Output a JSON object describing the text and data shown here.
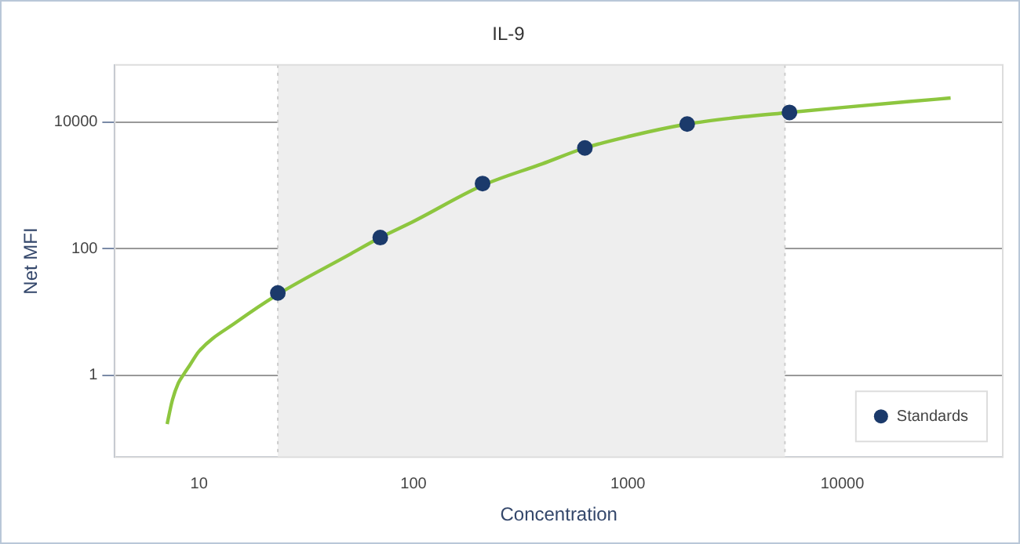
{
  "chart_data": {
    "type": "line",
    "title": "IL-9",
    "xlabel": "Concentration",
    "ylabel": "Net MFI",
    "log": "xy",
    "xlim": [
      4.05,
      56000
    ],
    "ylim": [
      0.051,
      80000
    ],
    "xticks": [
      10,
      100,
      1000,
      10000
    ],
    "yticks": [
      1,
      100,
      10000
    ],
    "grid": "y",
    "legend": "bottom right",
    "bands": [
      {
        "axis": "x",
        "from": 23.3,
        "to": 5400,
        "color": "#eeeeee"
      }
    ],
    "ref_lines": [
      {
        "axis": "x",
        "value": 23.3,
        "color": "#cccccc",
        "line_style": "dotted"
      },
      {
        "axis": "x",
        "value": 5400,
        "color": "#cccccc",
        "line_style": "dotted"
      }
    ],
    "series": [
      {
        "color": "#8dc63f",
        "marker": "none",
        "line_style": "solid",
        "x": [
          7.1,
          7.5,
          8,
          8.5,
          9,
          10,
          15,
          23.3,
          50,
          70,
          100,
          210,
          400,
          630,
          1000,
          1890,
          3000,
          5670,
          10000,
          20000,
          32000
        ],
        "values": [
          0.17,
          0.4,
          0.75,
          1.05,
          1.4,
          2.4,
          7,
          19,
          80,
          150,
          270,
          1000,
          2200,
          3900,
          5900,
          9300,
          11500,
          14200,
          17000,
          21000,
          24000
        ]
      },
      {
        "type": "scatter",
        "name": "Standards",
        "color": "#1b3a6b",
        "marker": "circle",
        "x": [
          23.3,
          70,
          210,
          630,
          1890,
          5670
        ],
        "values": [
          20,
          150,
          1070,
          3900,
          9300,
          14200
        ]
      }
    ]
  }
}
